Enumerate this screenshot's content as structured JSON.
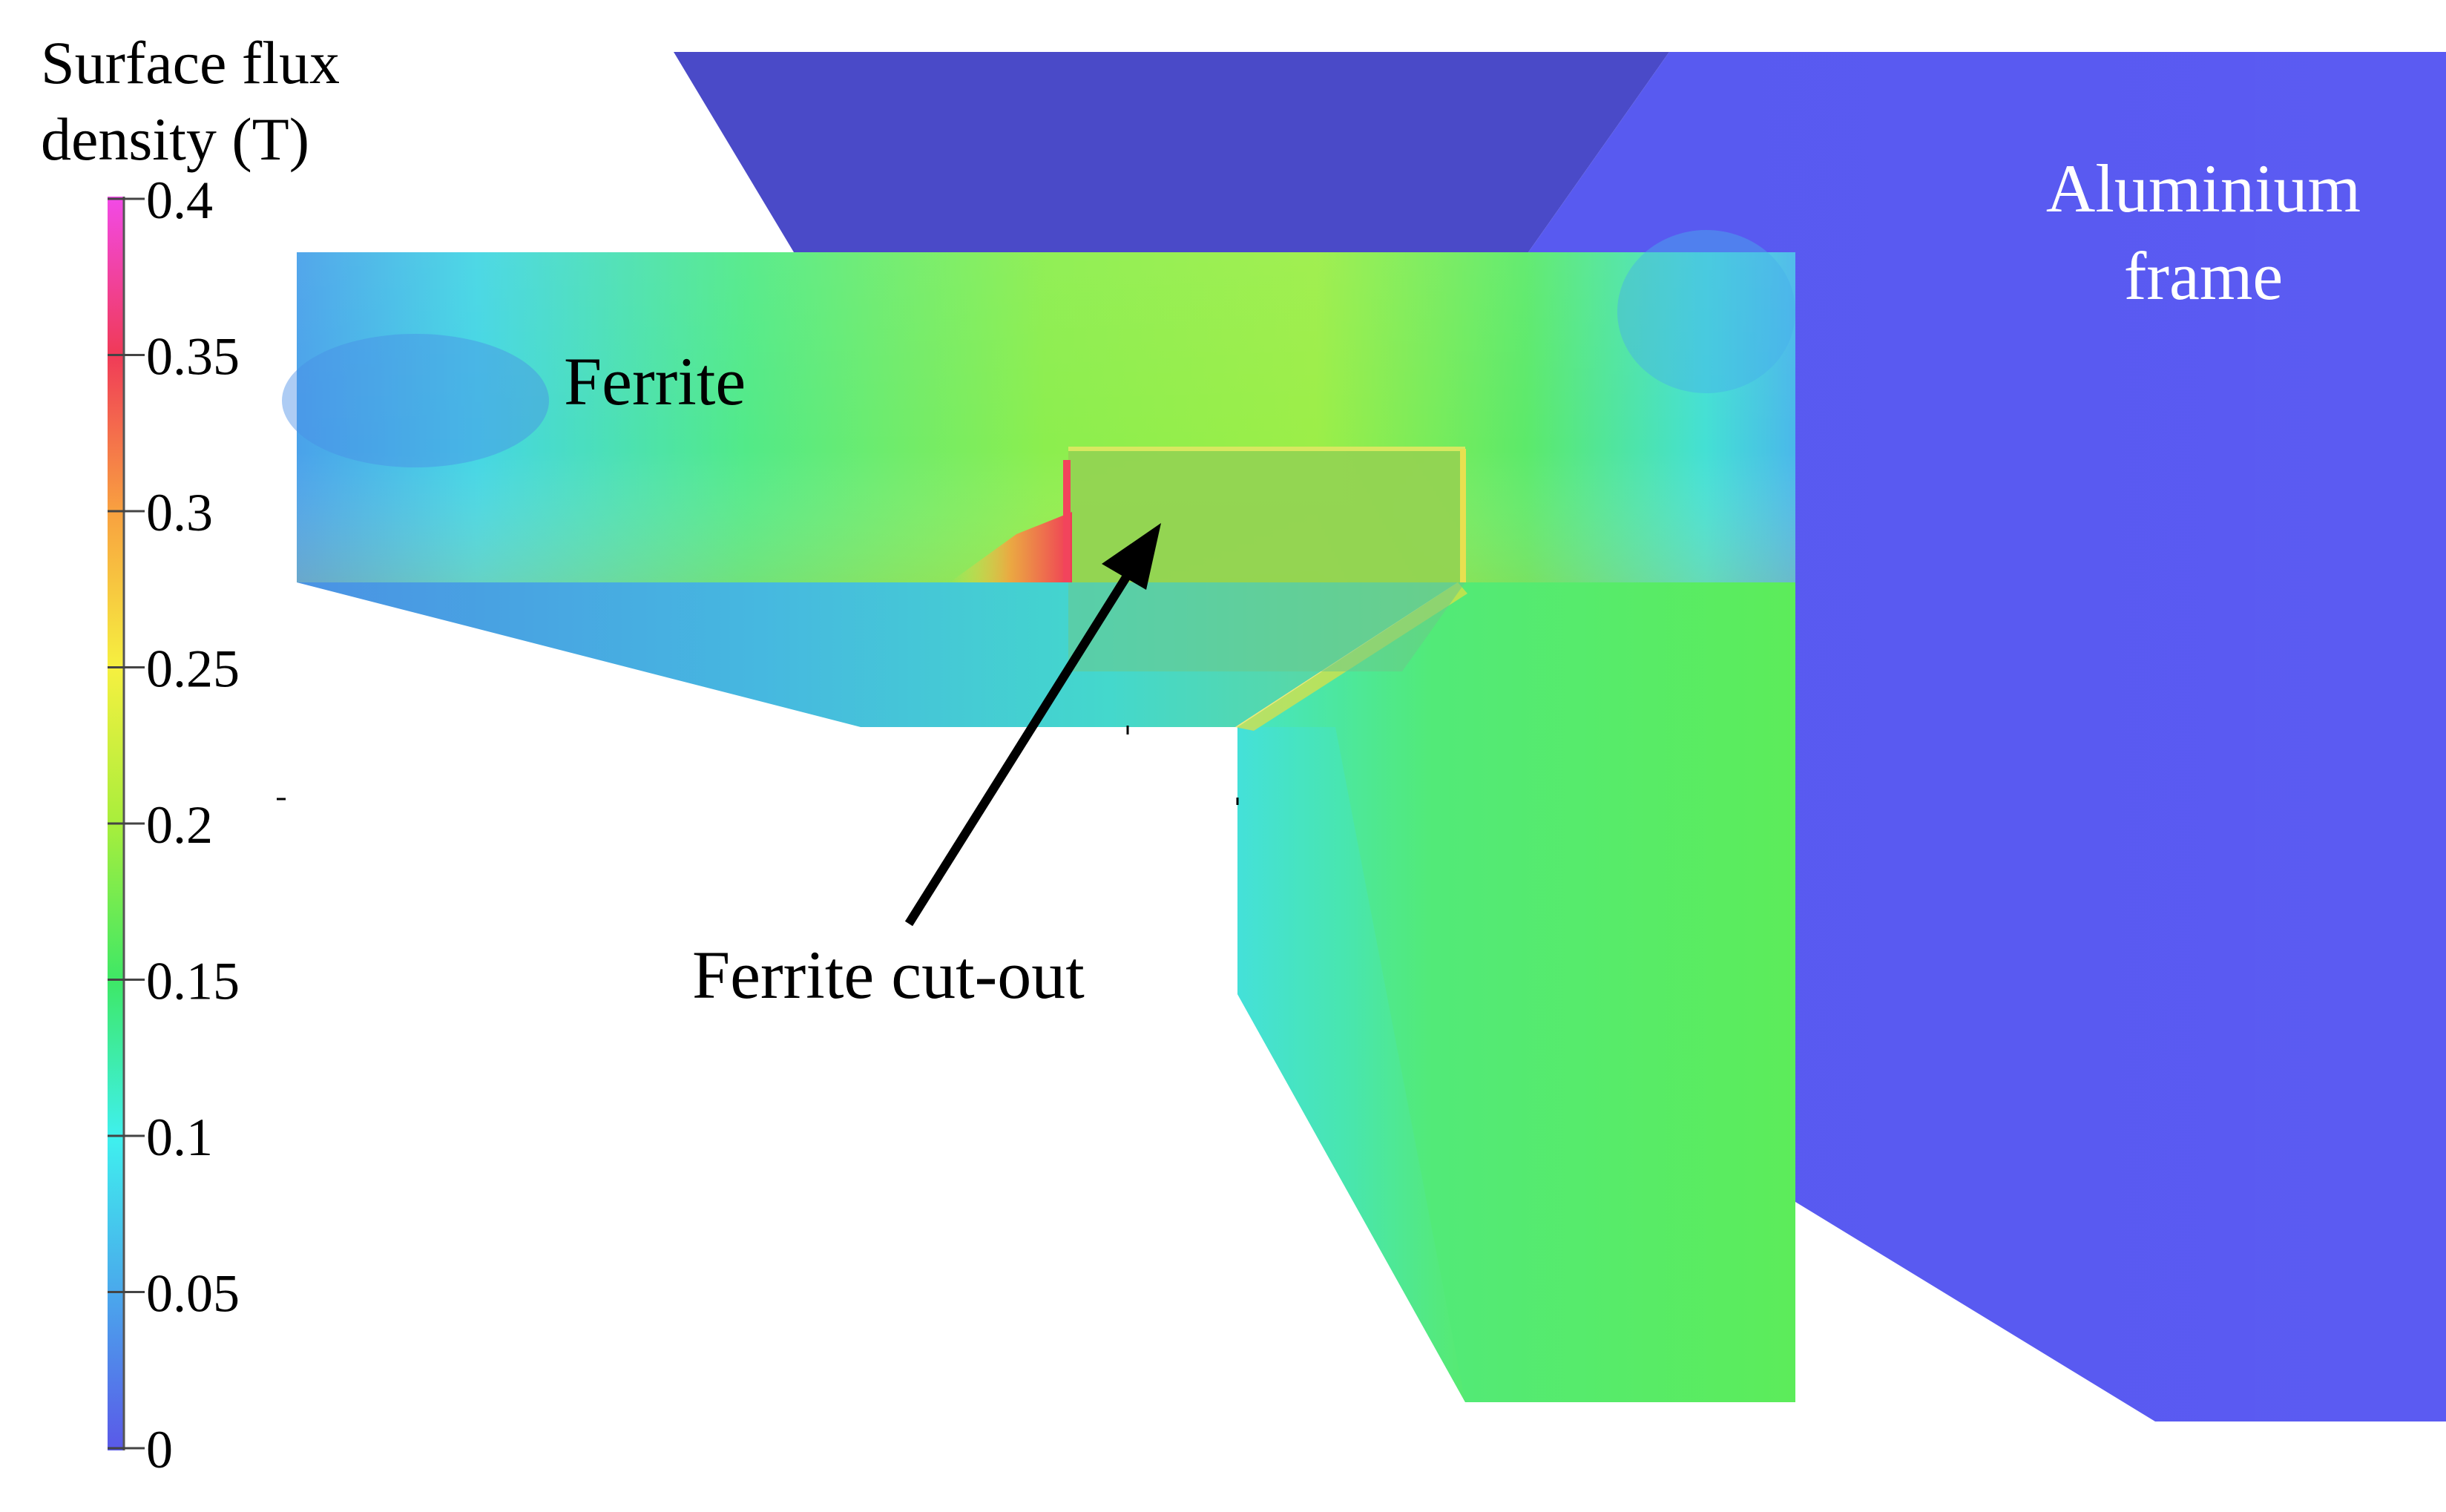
{
  "colorbar": {
    "title_line1": "Surface flux",
    "title_line2": "density (T)",
    "ticks": [
      {
        "value": 0.4,
        "label": "0.4"
      },
      {
        "value": 0.35,
        "label": "0.35"
      },
      {
        "value": 0.3,
        "label": "0.3"
      },
      {
        "value": 0.25,
        "label": "0.25"
      },
      {
        "value": 0.2,
        "label": "0.2"
      },
      {
        "value": 0.15,
        "label": "0.15"
      },
      {
        "value": 0.1,
        "label": "0.1"
      },
      {
        "value": 0.05,
        "label": "0.05"
      },
      {
        "value": 0,
        "label": "0"
      }
    ],
    "range": [
      0,
      0.4
    ],
    "colors": [
      "#5a58e8",
      "#4aa8ec",
      "#3ff0ee",
      "#3ee866",
      "#a8ee3c",
      "#f6f040",
      "#f8a040",
      "#f03a58",
      "#f24ae8"
    ]
  },
  "labels": {
    "ferrite": "Ferrite",
    "cutout": "Ferrite cut-out",
    "frame_line1": "Aluminium",
    "frame_line2": "frame"
  },
  "colors": {
    "frame_dark": "#4a4ac8",
    "frame_light": "#5a5af0",
    "ferrite_green": "#5cec5a",
    "ferrite_cyan": "#46e8d8",
    "ferrite_blue": "#4aa8e8"
  }
}
